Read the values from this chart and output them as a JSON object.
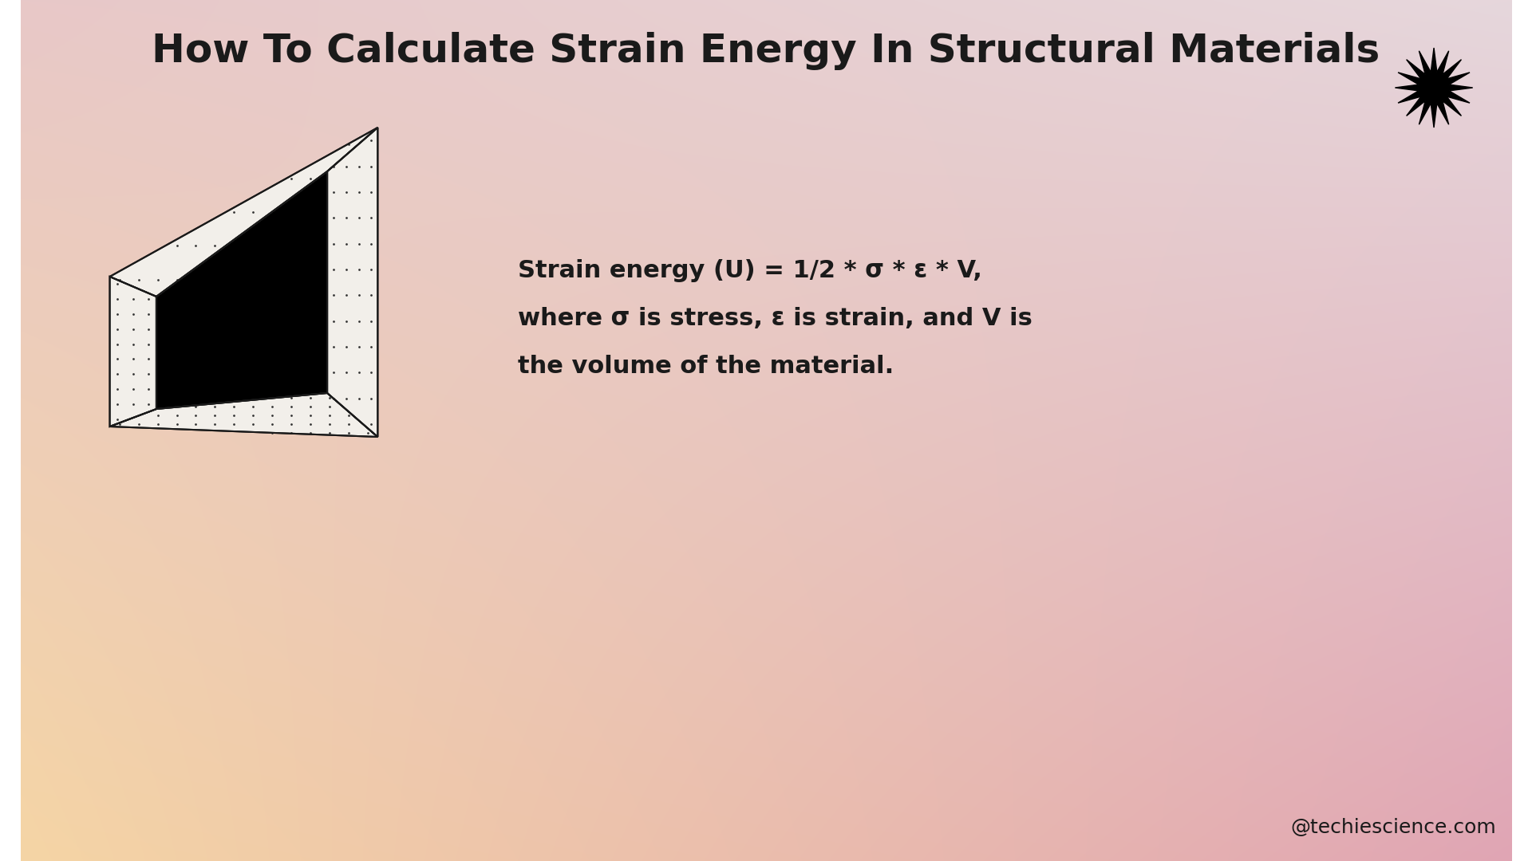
{
  "title": "How To Calculate Strain Energy In Structural Materials",
  "title_fontsize": 36,
  "title_fontweight": "bold",
  "formula_text_line1": "Strain energy (U) = 1/2 * σ * ε * V,",
  "formula_text_line2": "where σ is stress, ε is strain, and V is",
  "formula_text_line3": "the volume of the material.",
  "formula_fontsize": 22,
  "watermark": "@techiescience.com",
  "watermark_fontsize": 18,
  "bg_color_topleft": "#e8c5c5",
  "bg_color_topright": "#e8c5c5",
  "bg_color_bottomleft": "#f5d5a0",
  "bg_color_bottomright": "#e0a0b0",
  "text_color": "#1a1a1a",
  "dot_color": "#555555",
  "beam_face_color": "#f0ede8",
  "beam_black_color": "#000000"
}
